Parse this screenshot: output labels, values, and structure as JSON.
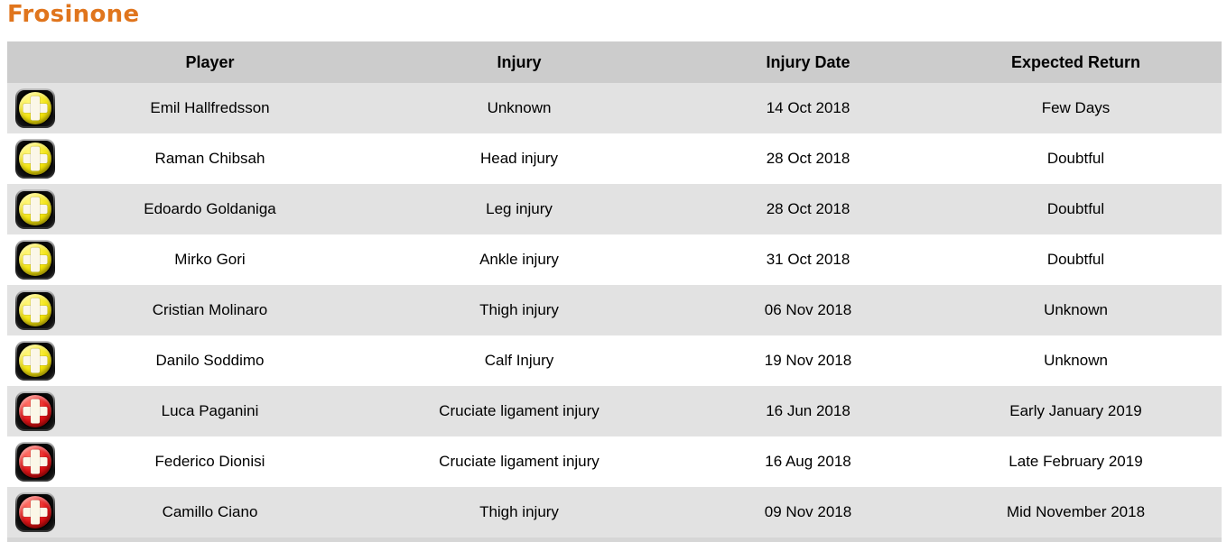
{
  "page": {
    "title": "Frosinone"
  },
  "colors": {
    "title": "#E0751D",
    "header_bg": "#CCCCCC",
    "row_bg": "#FFFFFF",
    "row_alt_bg": "#E2E2E2",
    "footer_bar_bg": "#D6D6D6",
    "icon_minor_yellow": "#F2E30A",
    "icon_serious_red": "#DF1216",
    "text": "#000000"
  },
  "table": {
    "columns": {
      "icon_header": "",
      "player": "Player",
      "injury": "Injury",
      "injury_date": "Injury Date",
      "expected_return": "Expected Return"
    },
    "rows": [
      {
        "severity": "minor",
        "icon": "yellow-plus-icon",
        "player": "Emil Hallfredsson",
        "injury": "Unknown",
        "injury_date": "14 Oct 2018",
        "expected_return": "Few Days"
      },
      {
        "severity": "minor",
        "icon": "yellow-plus-icon",
        "player": "Raman Chibsah",
        "injury": "Head injury",
        "injury_date": "28 Oct 2018",
        "expected_return": "Doubtful"
      },
      {
        "severity": "minor",
        "icon": "yellow-plus-icon",
        "player": "Edoardo Goldaniga",
        "injury": "Leg injury",
        "injury_date": "28 Oct 2018",
        "expected_return": "Doubtful"
      },
      {
        "severity": "minor",
        "icon": "yellow-plus-icon",
        "player": "Mirko Gori",
        "injury": "Ankle injury",
        "injury_date": "31 Oct 2018",
        "expected_return": "Doubtful"
      },
      {
        "severity": "minor",
        "icon": "yellow-plus-icon",
        "player": "Cristian Molinaro",
        "injury": "Thigh injury",
        "injury_date": "06 Nov 2018",
        "expected_return": "Unknown"
      },
      {
        "severity": "minor",
        "icon": "yellow-plus-icon",
        "player": "Danilo Soddimo",
        "injury": "Calf Injury",
        "injury_date": "19 Nov 2018",
        "expected_return": "Unknown"
      },
      {
        "severity": "serious",
        "icon": "red-plus-icon",
        "player": "Luca Paganini",
        "injury": "Cruciate ligament injury",
        "injury_date": "16 Jun 2018",
        "expected_return": "Early January 2019"
      },
      {
        "severity": "serious",
        "icon": "red-plus-icon",
        "player": "Federico Dionisi",
        "injury": "Cruciate ligament injury",
        "injury_date": "16 Aug 2018",
        "expected_return": "Late February 2019"
      },
      {
        "severity": "serious",
        "icon": "red-plus-icon",
        "player": "Camillo Ciano",
        "injury": "Thigh injury",
        "injury_date": "09 Nov 2018",
        "expected_return": "Mid November 2018"
      }
    ]
  }
}
